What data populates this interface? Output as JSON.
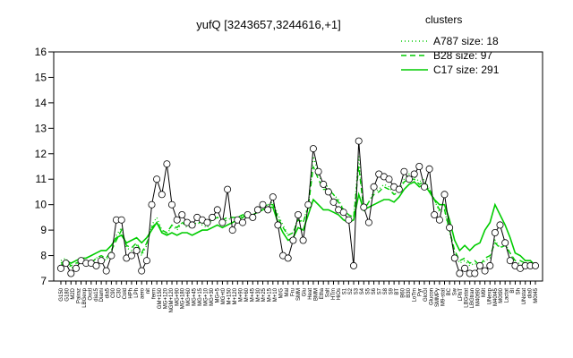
{
  "chart_data": {
    "type": "line",
    "title": "yufQ [3243657,3244616,+1]",
    "ylim": [
      7,
      16
    ],
    "yticks": [
      7,
      8,
      9,
      10,
      11,
      12,
      13,
      14,
      15,
      16
    ],
    "legend": {
      "title": "clusters",
      "placement": "top-right",
      "color": "#00cc00",
      "entries": [
        {
          "label": "A787 size: 18",
          "style": "dotted"
        },
        {
          "label": "B28 size: 97",
          "style": "dashed"
        },
        {
          "label": "C17 size: 291",
          "style": "solid"
        }
      ]
    },
    "categories": [
      "G150",
      "G180",
      "G135",
      "M2D",
      "Pairaz",
      "LBGexp",
      "Oxctl",
      "dia15",
      "Diami",
      "dia0",
      "C90",
      "C30",
      "Cold",
      "HPh",
      "LPh",
      "aero",
      "nit",
      "ferm",
      "GM+150",
      "GM+25",
      "NGM+120",
      "MG+90",
      "MG+180",
      "MG+60",
      "MG+45",
      "MG+15",
      "MG+10",
      "MG+30",
      "MG+5",
      "MG+t0",
      "M+150",
      "M+120",
      "M+90",
      "M+60",
      "M+45",
      "M+30",
      "M+25",
      "M+15",
      "M+10",
      "M/G",
      "Mal",
      "Fru",
      "SMM",
      "Glu",
      "Heat",
      "BMM",
      "Etha",
      "Salt",
      "HTm",
      "HiOs",
      "S1",
      "S2",
      "S3",
      "S4",
      "S5",
      "S6",
      "S7",
      "S8",
      "S9",
      "BT",
      "B60",
      "B30",
      "LoTm",
      "Pyr",
      "GlcGl",
      "Glucon",
      "SMMPy",
      "Mt+LB",
      "T-0.4",
      "T-0.3",
      "T-0.2",
      "T-0.1",
      "T+0",
      "T+0.4",
      "M9-stat",
      "BC",
      "Sw",
      "LPhT",
      "LBGstat",
      "LBGtran",
      "M40t90",
      "M9t",
      "UNexp",
      "M40t45",
      "M40t60",
      "M0t30",
      "M0t90",
      "Lactat",
      "BI",
      "Sh",
      "UNstat",
      "dia5",
      "M40t45b",
      "M0t45",
      "UNexp2"
    ],
    "xtick_labels": [
      "G150",
      "G180",
      "M2D",
      "Pairaz",
      "LBGexp",
      "Oxctl",
      "dia15",
      "Diami",
      "dia5",
      "C90",
      "C30",
      "Cold",
      "HPh",
      "LPh",
      "aero",
      "nit",
      "ferm",
      "GM+150",
      "MG+120",
      "NGM+120",
      "MG+90",
      "MG+180",
      "MG+60",
      "MG+45",
      "MG+15",
      "MG+10",
      "MG+30",
      "MG+5",
      "MG+t0",
      "M+150",
      "M+120",
      "M+90",
      "M+60",
      "M+45",
      "M+30",
      "M+25",
      "M+15",
      "M+10",
      "M/G",
      "Mal",
      "Fru",
      "SMM",
      "Glu",
      "Heat",
      "BMM",
      "Etha",
      "Salt",
      "HTm",
      "HiOs",
      "S1",
      "S2",
      "S3",
      "S4",
      "S5",
      "S6",
      "S7",
      "S8",
      "S9",
      "BT",
      "B60",
      "B30",
      "LoTm",
      "Pyr",
      "GlcGl",
      "Glucon",
      "SMMPy",
      "M9-stat",
      "BC",
      "Sw",
      "LPhT",
      "LBGstat",
      "LBGtran",
      "M40t90",
      "M9t",
      "UNexp",
      "M40t45",
      "M0t90",
      "Lactat",
      "BI",
      "Sh",
      "UNstat",
      "dia0",
      "M0t45"
    ],
    "series": [
      {
        "name": "A787 size: 18",
        "style": "dotted",
        "values": [
          7.8,
          7.9,
          7.5,
          7.6,
          7.8,
          7.6,
          7.7,
          7.9,
          8.0,
          7.8,
          8.2,
          8.8,
          9.1,
          8.3,
          8.2,
          8.4,
          8.0,
          8.4,
          9.2,
          9.5,
          9.0,
          8.8,
          9.2,
          9.0,
          9.3,
          9.1,
          9.2,
          9.3,
          9.2,
          9.1,
          9.4,
          9.5,
          9.3,
          9.4,
          9.5,
          9.4,
          9.6,
          9.5,
          9.6,
          9.7,
          9.9,
          10.0,
          10.1,
          9.6,
          9.2,
          8.8,
          8.9,
          9.5,
          9.3,
          10.0,
          11.9,
          11.2,
          10.8,
          10.7,
          10.4,
          10.2,
          9.8,
          9.6,
          9.5,
          11.9,
          9.7,
          10.1,
          10.5,
          10.6,
          10.8,
          10.7,
          10.4,
          10.5,
          11.0,
          11.2,
          11.1,
          10.9,
          11.0,
          10.6,
          10.2,
          9.7,
          9.8,
          8.9,
          8.1,
          7.7,
          7.8,
          7.6,
          7.7,
          7.5,
          7.8,
          7.9,
          8.6,
          8.3,
          8.5,
          8.1,
          7.7,
          7.7,
          7.6,
          7.7,
          7.6
        ]
      },
      {
        "name": "B28 size: 97",
        "style": "dashed",
        "values": [
          7.7,
          7.8,
          7.6,
          7.7,
          7.8,
          7.7,
          7.7,
          7.9,
          8.0,
          7.9,
          8.2,
          8.6,
          9.0,
          8.4,
          8.3,
          8.5,
          8.1,
          8.5,
          9.1,
          9.3,
          9.0,
          8.9,
          9.2,
          9.1,
          9.3,
          9.2,
          9.2,
          9.3,
          9.3,
          9.2,
          9.4,
          9.5,
          9.4,
          9.5,
          9.5,
          9.5,
          9.6,
          9.6,
          9.6,
          9.8,
          9.9,
          10.0,
          10.0,
          9.5,
          9.1,
          8.8,
          8.9,
          9.4,
          9.3,
          9.9,
          11.5,
          11.0,
          10.6,
          10.6,
          10.4,
          10.1,
          9.8,
          9.6,
          9.5,
          11.5,
          9.8,
          10.1,
          10.4,
          10.5,
          10.7,
          10.6,
          10.4,
          10.5,
          10.9,
          11.0,
          11.0,
          10.8,
          10.9,
          10.6,
          10.2,
          9.8,
          9.8,
          9.0,
          8.2,
          7.8,
          7.9,
          7.7,
          7.8,
          7.6,
          7.9,
          8.0,
          8.5,
          8.3,
          8.4,
          8.1,
          7.8,
          7.8,
          7.7,
          7.7,
          7.6
        ]
      },
      {
        "name": "C17 size: 291",
        "style": "solid",
        "values": [
          7.6,
          7.8,
          7.7,
          7.8,
          7.9,
          7.9,
          8.0,
          8.1,
          8.2,
          8.2,
          8.4,
          8.7,
          8.8,
          8.5,
          8.6,
          8.7,
          8.5,
          8.7,
          9.0,
          9.3,
          8.9,
          8.8,
          8.9,
          8.8,
          8.9,
          8.9,
          8.8,
          8.9,
          9.0,
          9.0,
          9.1,
          9.2,
          9.1,
          9.2,
          9.3,
          9.4,
          9.5,
          9.6,
          9.6,
          9.7,
          9.8,
          9.9,
          9.9,
          9.3,
          8.9,
          8.6,
          8.7,
          9.1,
          9.0,
          9.6,
          10.2,
          10.0,
          9.8,
          9.8,
          9.7,
          9.6,
          9.4,
          9.3,
          9.4,
          10.4,
          9.8,
          9.9,
          10.0,
          10.1,
          10.2,
          10.2,
          10.1,
          10.3,
          10.6,
          10.8,
          10.9,
          10.7,
          10.8,
          10.5,
          10.2,
          10.0,
          10.0,
          9.4,
          8.6,
          8.2,
          8.4,
          8.2,
          8.4,
          8.5,
          9.0,
          9.3,
          10.0,
          9.6,
          9.2,
          8.7,
          8.1,
          8.0,
          7.8,
          7.8,
          7.6
        ]
      },
      {
        "name": "",
        "style": "black-points",
        "values": [
          7.5,
          7.7,
          7.3,
          7.5,
          7.8,
          7.7,
          7.7,
          7.6,
          7.8,
          7.4,
          8.0,
          9.4,
          9.4,
          7.9,
          8.0,
          8.2,
          7.4,
          7.8,
          10.0,
          11.0,
          10.4,
          11.6,
          10.0,
          9.4,
          9.6,
          9.3,
          9.2,
          9.5,
          9.4,
          9.3,
          9.5,
          9.8,
          9.3,
          10.6,
          9.0,
          9.4,
          9.3,
          9.6,
          9.5,
          9.8,
          10.0,
          9.8,
          10.3,
          9.2,
          8.0,
          7.9,
          8.6,
          9.6,
          8.6,
          10.0,
          12.2,
          11.3,
          10.8,
          10.5,
          10.1,
          9.8,
          9.7,
          9.4,
          7.6,
          12.5,
          9.9,
          9.3,
          10.7,
          11.2,
          11.1,
          11.0,
          10.7,
          10.6,
          11.3,
          11.0,
          11.2,
          11.5,
          10.7,
          11.4,
          9.6,
          9.4,
          10.4,
          9.1,
          7.9,
          7.3,
          7.5,
          7.3,
          7.3,
          7.6,
          7.4,
          7.6,
          8.9,
          9.2,
          8.5,
          7.8,
          7.6,
          7.5,
          7.6,
          7.6,
          7.6
        ]
      }
    ]
  }
}
